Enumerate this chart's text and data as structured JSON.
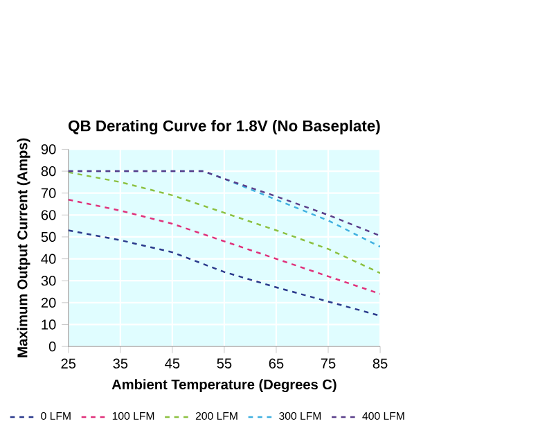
{
  "chart_data": {
    "type": "line",
    "title": "QB Derating Curve for 1.8V (No Baseplate)",
    "xlabel": "Ambient Temperature (Degrees C)",
    "ylabel": "Maximum Output Current (Amps)",
    "x": [
      25,
      35,
      45,
      51,
      55,
      65,
      75,
      85
    ],
    "series": [
      {
        "name": "0 LFM",
        "color": "#2b3a8c",
        "values": [
          53,
          48.5,
          43,
          null,
          34,
          27,
          20.5,
          14
        ]
      },
      {
        "name": "100 LFM",
        "color": "#e0307a",
        "values": [
          67,
          62,
          56,
          null,
          48,
          40,
          32,
          24
        ]
      },
      {
        "name": "200 LFM",
        "color": "#8cc040",
        "values": [
          79.5,
          75,
          69,
          null,
          61,
          53,
          44.5,
          33.5
        ]
      },
      {
        "name": "300 LFM",
        "color": "#40b0e0",
        "values": [
          80,
          80,
          80,
          80,
          76.5,
          67,
          57.5,
          45.5
        ]
      },
      {
        "name": "400 LFM",
        "color": "#5a3e8a",
        "values": [
          80,
          80,
          80,
          80,
          76.5,
          68.5,
          60,
          50.5
        ]
      }
    ],
    "xlim": [
      25,
      85
    ],
    "xticks": [
      25,
      35,
      45,
      55,
      65,
      75,
      85
    ],
    "ylim": [
      0,
      90
    ],
    "yticks": [
      0,
      10,
      20,
      30,
      40,
      50,
      60,
      70,
      80,
      90
    ],
    "grid": true,
    "legend": "bottom",
    "line_style": "dashed",
    "marker": "none"
  }
}
